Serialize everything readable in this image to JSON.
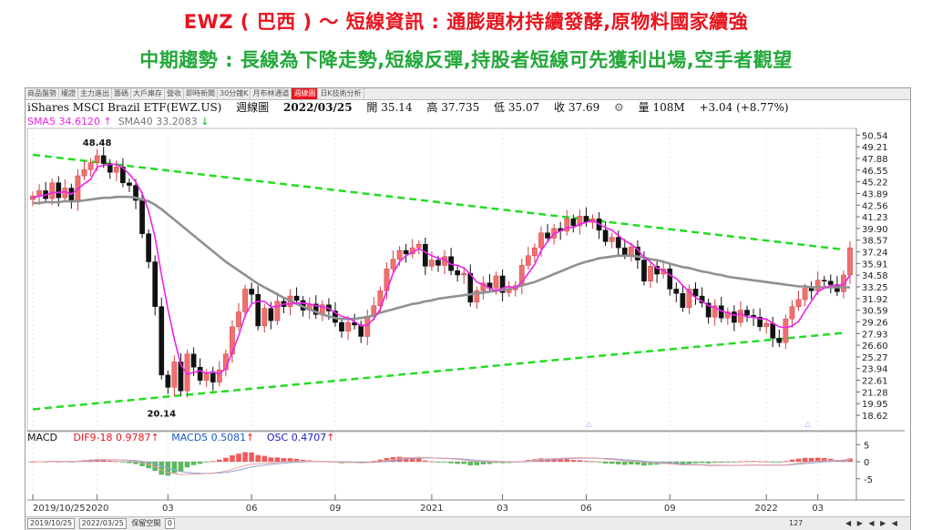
{
  "title_line1": "EWZ ( 巴西 ) ～ 短線資訊 : 通膨題材持續發酵,原物料國家續強",
  "title_line2": "中期趨勢 : 長線為下降走勢,短線反彈,持股者短線可先獲利出場,空手者觀望",
  "tabs": [
    "商品盤勢",
    "權證",
    "主力進出",
    "籌碼",
    "大戶庫存",
    "營收",
    "即時新聞",
    "30分鐘K",
    "月布林通道",
    "週線圖",
    "日K技術分析"
  ],
  "active_tab": "週線圖",
  "info": {
    "name": "iShares MSCI Brazil ETF(EWZ.US)",
    "period": "週線圖",
    "date": "2022/03/25",
    "open": "開 35.14",
    "high": "高 37.735",
    "low": "低 35.07",
    "close": "收 37.69",
    "volume": "量 108M",
    "change": "+3.04 (+8.77%)"
  },
  "legend": {
    "sma5": "SMA5 34.6120",
    "sma40": "SMA40 33.2083",
    "macd": "MACD",
    "dif": "DIF9-18 0.9787",
    "macd5": "MACD5 0.5081",
    "osc": "OSC 0.4707"
  },
  "bottom": {
    "from": "2019/10/25",
    "to": "2022/03/25",
    "label": "保留空間",
    "num": "0",
    "scroll": "127"
  },
  "colors": {
    "up": "#f07070",
    "down": "#111111",
    "sma5": "#ee22ee",
    "sma40": "#909090",
    "trend": "#22dd22",
    "dif": "#e8141e",
    "macd5": "#1a57c8",
    "osc": "#1a1ac8"
  },
  "chart_data": {
    "type": "candlestick",
    "y_ticks": [
      "50.54",
      "49.21",
      "47.88",
      "46.55",
      "45.22",
      "43.89",
      "42.56",
      "41.23",
      "39.90",
      "38.57",
      "37.24",
      "35.91",
      "34.58",
      "33.25",
      "31.92",
      "30.59",
      "29.26",
      "27.93",
      "26.60",
      "25.27",
      "23.94",
      "22.61",
      "21.28",
      "19.95",
      "18.62"
    ],
    "ylim": [
      18.0,
      51.3
    ],
    "x_ticks": [
      {
        "label": "2019/10/25",
        "i": 0
      },
      {
        "label": "2020",
        "i": 10
      },
      {
        "label": "03",
        "i": 21
      },
      {
        "label": "06",
        "i": 34
      },
      {
        "label": "09",
        "i": 47
      },
      {
        "label": "2021",
        "i": 62
      },
      {
        "label": "03",
        "i": 73
      },
      {
        "label": "06",
        "i": 86
      },
      {
        "label": "09",
        "i": 99
      },
      {
        "label": "2022",
        "i": 114
      },
      {
        "label": "03",
        "i": 122
      }
    ],
    "annotations": [
      {
        "text": "48.48",
        "i": 10,
        "y": 48.48
      },
      {
        "text": "20.14",
        "i": 20,
        "y": 20.14
      }
    ],
    "close": [
      43.6,
      44.2,
      43.3,
      45.1,
      43.4,
      44.5,
      42.9,
      45.9,
      46.6,
      47.4,
      48.2,
      47.3,
      46.3,
      46.9,
      45.1,
      44.8,
      43.1,
      39.3,
      36.1,
      31.0,
      23.2,
      21.8,
      24.7,
      21.4,
      25.6,
      24.1,
      22.6,
      23.4,
      22.4,
      23.8,
      25.6,
      28.7,
      30.4,
      33.0,
      32.4,
      28.8,
      30.8,
      29.4,
      31.6,
      31.0,
      32.2,
      31.7,
      30.6,
      31.3,
      30.1,
      31.2,
      30.5,
      29.2,
      28.2,
      29.2,
      28.9,
      27.6,
      29.9,
      31.1,
      32.8,
      35.3,
      36.4,
      37.4,
      37.0,
      37.7,
      38.1,
      35.6,
      36.3,
      35.7,
      36.7,
      35.1,
      34.6,
      34.8,
      31.5,
      32.8,
      33.7,
      33.1,
      34.5,
      32.6,
      32.9,
      33.4,
      35.7,
      36.8,
      37.7,
      39.4,
      38.8,
      39.9,
      39.6,
      41.0,
      40.2,
      41.3,
      40.6,
      41.0,
      39.7,
      38.4,
      38.9,
      37.7,
      36.9,
      37.8,
      36.3,
      33.9,
      35.6,
      34.7,
      35.3,
      33.0,
      32.5,
      30.9,
      33.0,
      32.2,
      31.4,
      29.8,
      31.1,
      29.7,
      30.4,
      29.2,
      30.6,
      30.0,
      29.8,
      28.7,
      29.1,
      27.4,
      26.9,
      29.6,
      31.0,
      31.8,
      33.1,
      32.8,
      34.0,
      33.9,
      33.5,
      32.7,
      34.6,
      37.7
    ],
    "sma5": [
      43.4,
      43.6,
      43.7,
      44.0,
      44.0,
      44.1,
      43.8,
      44.4,
      45.0,
      45.5,
      46.9,
      47.1,
      47.2,
      47.2,
      46.8,
      46.1,
      45.2,
      43.9,
      41.9,
      38.9,
      34.6,
      30.7,
      27.3,
      24.4,
      23.3,
      23.5,
      23.7,
      23.4,
      23.6,
      23.3,
      24.0,
      25.8,
      27.7,
      30.0,
      31.3,
      31.6,
      31.6,
      31.0,
      31.0,
      31.3,
      31.3,
      31.4,
      31.4,
      31.3,
      31.1,
      31.0,
      30.8,
      30.3,
      29.9,
      29.7,
      29.3,
      28.8,
      28.9,
      29.6,
      30.7,
      32.8,
      34.8,
      36.1,
      36.8,
      37.2,
      37.6,
      37.2,
      36.8,
      36.5,
      36.4,
      35.8,
      35.7,
      35.4,
      34.7,
      33.8,
      33.5,
      33.1,
      32.8,
      33.1,
      33.3,
      33.1,
      33.8,
      34.8,
      35.8,
      37.4,
      38.4,
      39.3,
      39.6,
      40.0,
      40.0,
      40.4,
      40.6,
      40.8,
      40.4,
      40.0,
      39.7,
      39.1,
      38.5,
      38.1,
      37.5,
      36.6,
      36.1,
      35.4,
      35.1,
      34.6,
      34.2,
      33.4,
      32.7,
      32.0,
      31.6,
      31.1,
      30.9,
      30.5,
      30.3,
      30.0,
      30.2,
      29.8,
      29.8,
      29.6,
      29.6,
      29.1,
      28.7,
      28.6,
      28.8,
      29.3,
      30.5,
      31.6,
      32.7,
      33.1,
      33.4,
      33.4,
      33.5,
      34.6
    ],
    "sma40": [
      42.8,
      42.8,
      42.9,
      42.9,
      42.9,
      43.0,
      43.0,
      43.0,
      43.1,
      43.2,
      43.3,
      43.4,
      43.4,
      43.5,
      43.5,
      43.5,
      43.4,
      43.2,
      43.0,
      42.6,
      42.1,
      41.5,
      40.9,
      40.3,
      39.7,
      39.1,
      38.5,
      37.9,
      37.3,
      36.7,
      36.1,
      35.6,
      35.1,
      34.6,
      34.1,
      33.6,
      33.2,
      32.8,
      32.4,
      32.0,
      31.7,
      31.3,
      31.0,
      30.7,
      30.4,
      30.1,
      29.9,
      29.7,
      29.6,
      29.6,
      29.6,
      29.7,
      29.8,
      30.0,
      30.3,
      30.5,
      30.7,
      30.9,
      31.1,
      31.3,
      31.4,
      31.6,
      31.7,
      31.9,
      32.0,
      32.1,
      32.2,
      32.3,
      32.4,
      32.5,
      32.6,
      32.7,
      32.8,
      32.9,
      33.0,
      33.2,
      33.4,
      33.6,
      33.8,
      34.1,
      34.4,
      34.7,
      35.0,
      35.3,
      35.6,
      35.9,
      36.1,
      36.3,
      36.5,
      36.6,
      36.7,
      36.8,
      36.8,
      36.8,
      36.7,
      36.6,
      36.4,
      36.3,
      36.1,
      35.9,
      35.7,
      35.5,
      35.4,
      35.2,
      35.0,
      34.9,
      34.7,
      34.6,
      34.4,
      34.3,
      34.2,
      34.1,
      34.0,
      33.9,
      33.8,
      33.7,
      33.6,
      33.5,
      33.4,
      33.3,
      33.3,
      33.2,
      33.2,
      33.2,
      33.2,
      33.2,
      33.2,
      33.2
    ],
    "trend_upper": [
      {
        "i": 0,
        "y": 48.3
      },
      {
        "i": 126,
        "y": 37.5
      }
    ],
    "trend_lower": [
      {
        "i": 0,
        "y": 19.3
      },
      {
        "i": 126,
        "y": 28.0
      }
    ],
    "macd": {
      "ylim": [
        -8,
        8
      ],
      "y_ticks": [
        "5",
        "0",
        "-5"
      ]
    }
  }
}
